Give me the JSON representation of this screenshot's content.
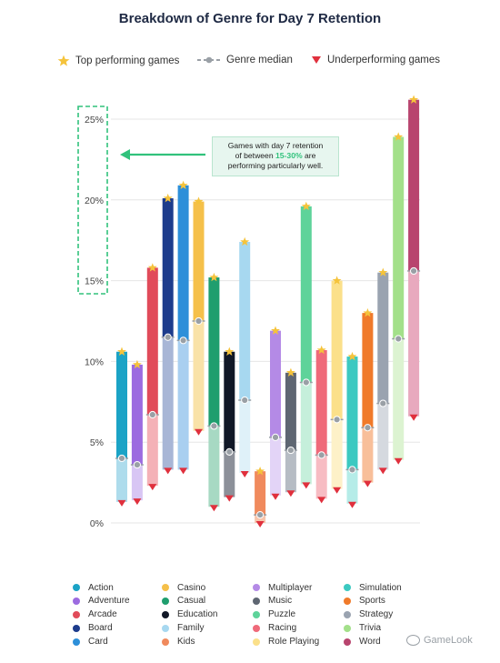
{
  "title": "Breakdown of Genre for Day 7 Retention",
  "top_legend": {
    "top": "Top performing games",
    "median": "Genre median",
    "under": "Underperforming games"
  },
  "callout": {
    "line1": "Games with day 7 retention",
    "line2_pre": "of between",
    "line2_hl": "15-30%",
    "line2_post": "are",
    "line3": "performing particularly well."
  },
  "watermark": "GameLook",
  "colors": {
    "star": "#f5c33b",
    "under": "#e0303d",
    "median": "#9aa0a6",
    "callout_green": "#31c27c",
    "grid": "#e6e6e6"
  },
  "chart_data": {
    "type": "range-bar",
    "title": "Breakdown of Genre for Day 7 Retention",
    "y_axis": {
      "min": 0,
      "max": 25,
      "ticks": [
        "0%",
        "5%",
        "10%",
        "15%",
        "20%",
        "25%"
      ]
    },
    "series": [
      {
        "name": "Action",
        "top": 10.6,
        "median": 4.0,
        "under": 1.3,
        "color": "#1ba3c6",
        "light": "#aedcec"
      },
      {
        "name": "Adventure",
        "top": 9.8,
        "median": 3.6,
        "under": 1.4,
        "color": "#9c6be0",
        "light": "#d8c6f4"
      },
      {
        "name": "Arcade",
        "top": 15.8,
        "median": 6.7,
        "under": 2.3,
        "color": "#e14b5a",
        "light": "#f4b1b7"
      },
      {
        "name": "Board",
        "top": 20.1,
        "median": 11.5,
        "under": 3.3,
        "color": "#1d3c8c",
        "light": "#a8b6d6"
      },
      {
        "name": "Card",
        "top": 20.9,
        "median": 11.3,
        "under": 3.3,
        "color": "#2d8fd9",
        "light": "#a9cff0"
      },
      {
        "name": "Casino",
        "top": 19.9,
        "median": 12.5,
        "under": 5.7,
        "color": "#f5c04a",
        "light": "#f9e2a8"
      },
      {
        "name": "Casual",
        "top": 15.2,
        "median": 6.0,
        "under": 1.0,
        "color": "#1f9e6e",
        "light": "#a7d9c3"
      },
      {
        "name": "Education",
        "top": 10.6,
        "median": 4.4,
        "under": 1.6,
        "color": "#111827",
        "light": "#8c9099"
      },
      {
        "name": "Family",
        "top": 17.4,
        "median": 7.6,
        "under": 3.1,
        "color": "#a7d8f0",
        "light": "#dff1f9"
      },
      {
        "name": "Kids",
        "top": 3.2,
        "median": 0.5,
        "under": 0.0,
        "color": "#f08a5d",
        "light": "#f7c4ab"
      },
      {
        "name": "Multiplayer",
        "top": 11.9,
        "median": 5.3,
        "under": 1.7,
        "color": "#b48ae6",
        "light": "#e3d4f7"
      },
      {
        "name": "Music",
        "top": 9.3,
        "median": 4.5,
        "under": 1.9,
        "color": "#5e6672",
        "light": "#b6bcc4"
      },
      {
        "name": "Puzzle",
        "top": 19.6,
        "median": 8.7,
        "under": 2.4,
        "color": "#5ed39a",
        "light": "#c5efdb"
      },
      {
        "name": "Racing",
        "top": 10.7,
        "median": 4.2,
        "under": 1.5,
        "color": "#ef6a7a",
        "light": "#f7bcc3"
      },
      {
        "name": "Role Playing",
        "top": 15.0,
        "median": 6.4,
        "under": 2.1,
        "color": "#fbe08a",
        "light": "#fdf1c8"
      },
      {
        "name": "Simulation",
        "top": 10.3,
        "median": 3.3,
        "under": 1.2,
        "color": "#3cc9c1",
        "light": "#b5ece8"
      },
      {
        "name": "Sports",
        "top": 13.0,
        "median": 5.9,
        "under": 2.5,
        "color": "#f07a2a",
        "light": "#f8bf9a"
      },
      {
        "name": "Strategy",
        "top": 15.5,
        "median": 7.4,
        "under": 3.3,
        "color": "#9aa3b0",
        "light": "#d5d9df"
      },
      {
        "name": "Trivia",
        "top": 23.9,
        "median": 11.4,
        "under": 3.9,
        "color": "#a3e08a",
        "light": "#dcf3d1"
      },
      {
        "name": "Word",
        "top": 26.2,
        "median": 15.6,
        "under": 6.6,
        "color": "#b8446e",
        "light": "#e8a9be"
      }
    ]
  },
  "legend_columns": [
    [
      "Action",
      "Adventure",
      "Arcade",
      "Board",
      "Card"
    ],
    [
      "Casino",
      "Casual",
      "Education",
      "Family",
      "Kids"
    ],
    [
      "Multiplayer",
      "Music",
      "Puzzle",
      "Racing",
      "Role Playing"
    ],
    [
      "Simulation",
      "Sports",
      "Strategy",
      "Trivia",
      "Word"
    ]
  ]
}
